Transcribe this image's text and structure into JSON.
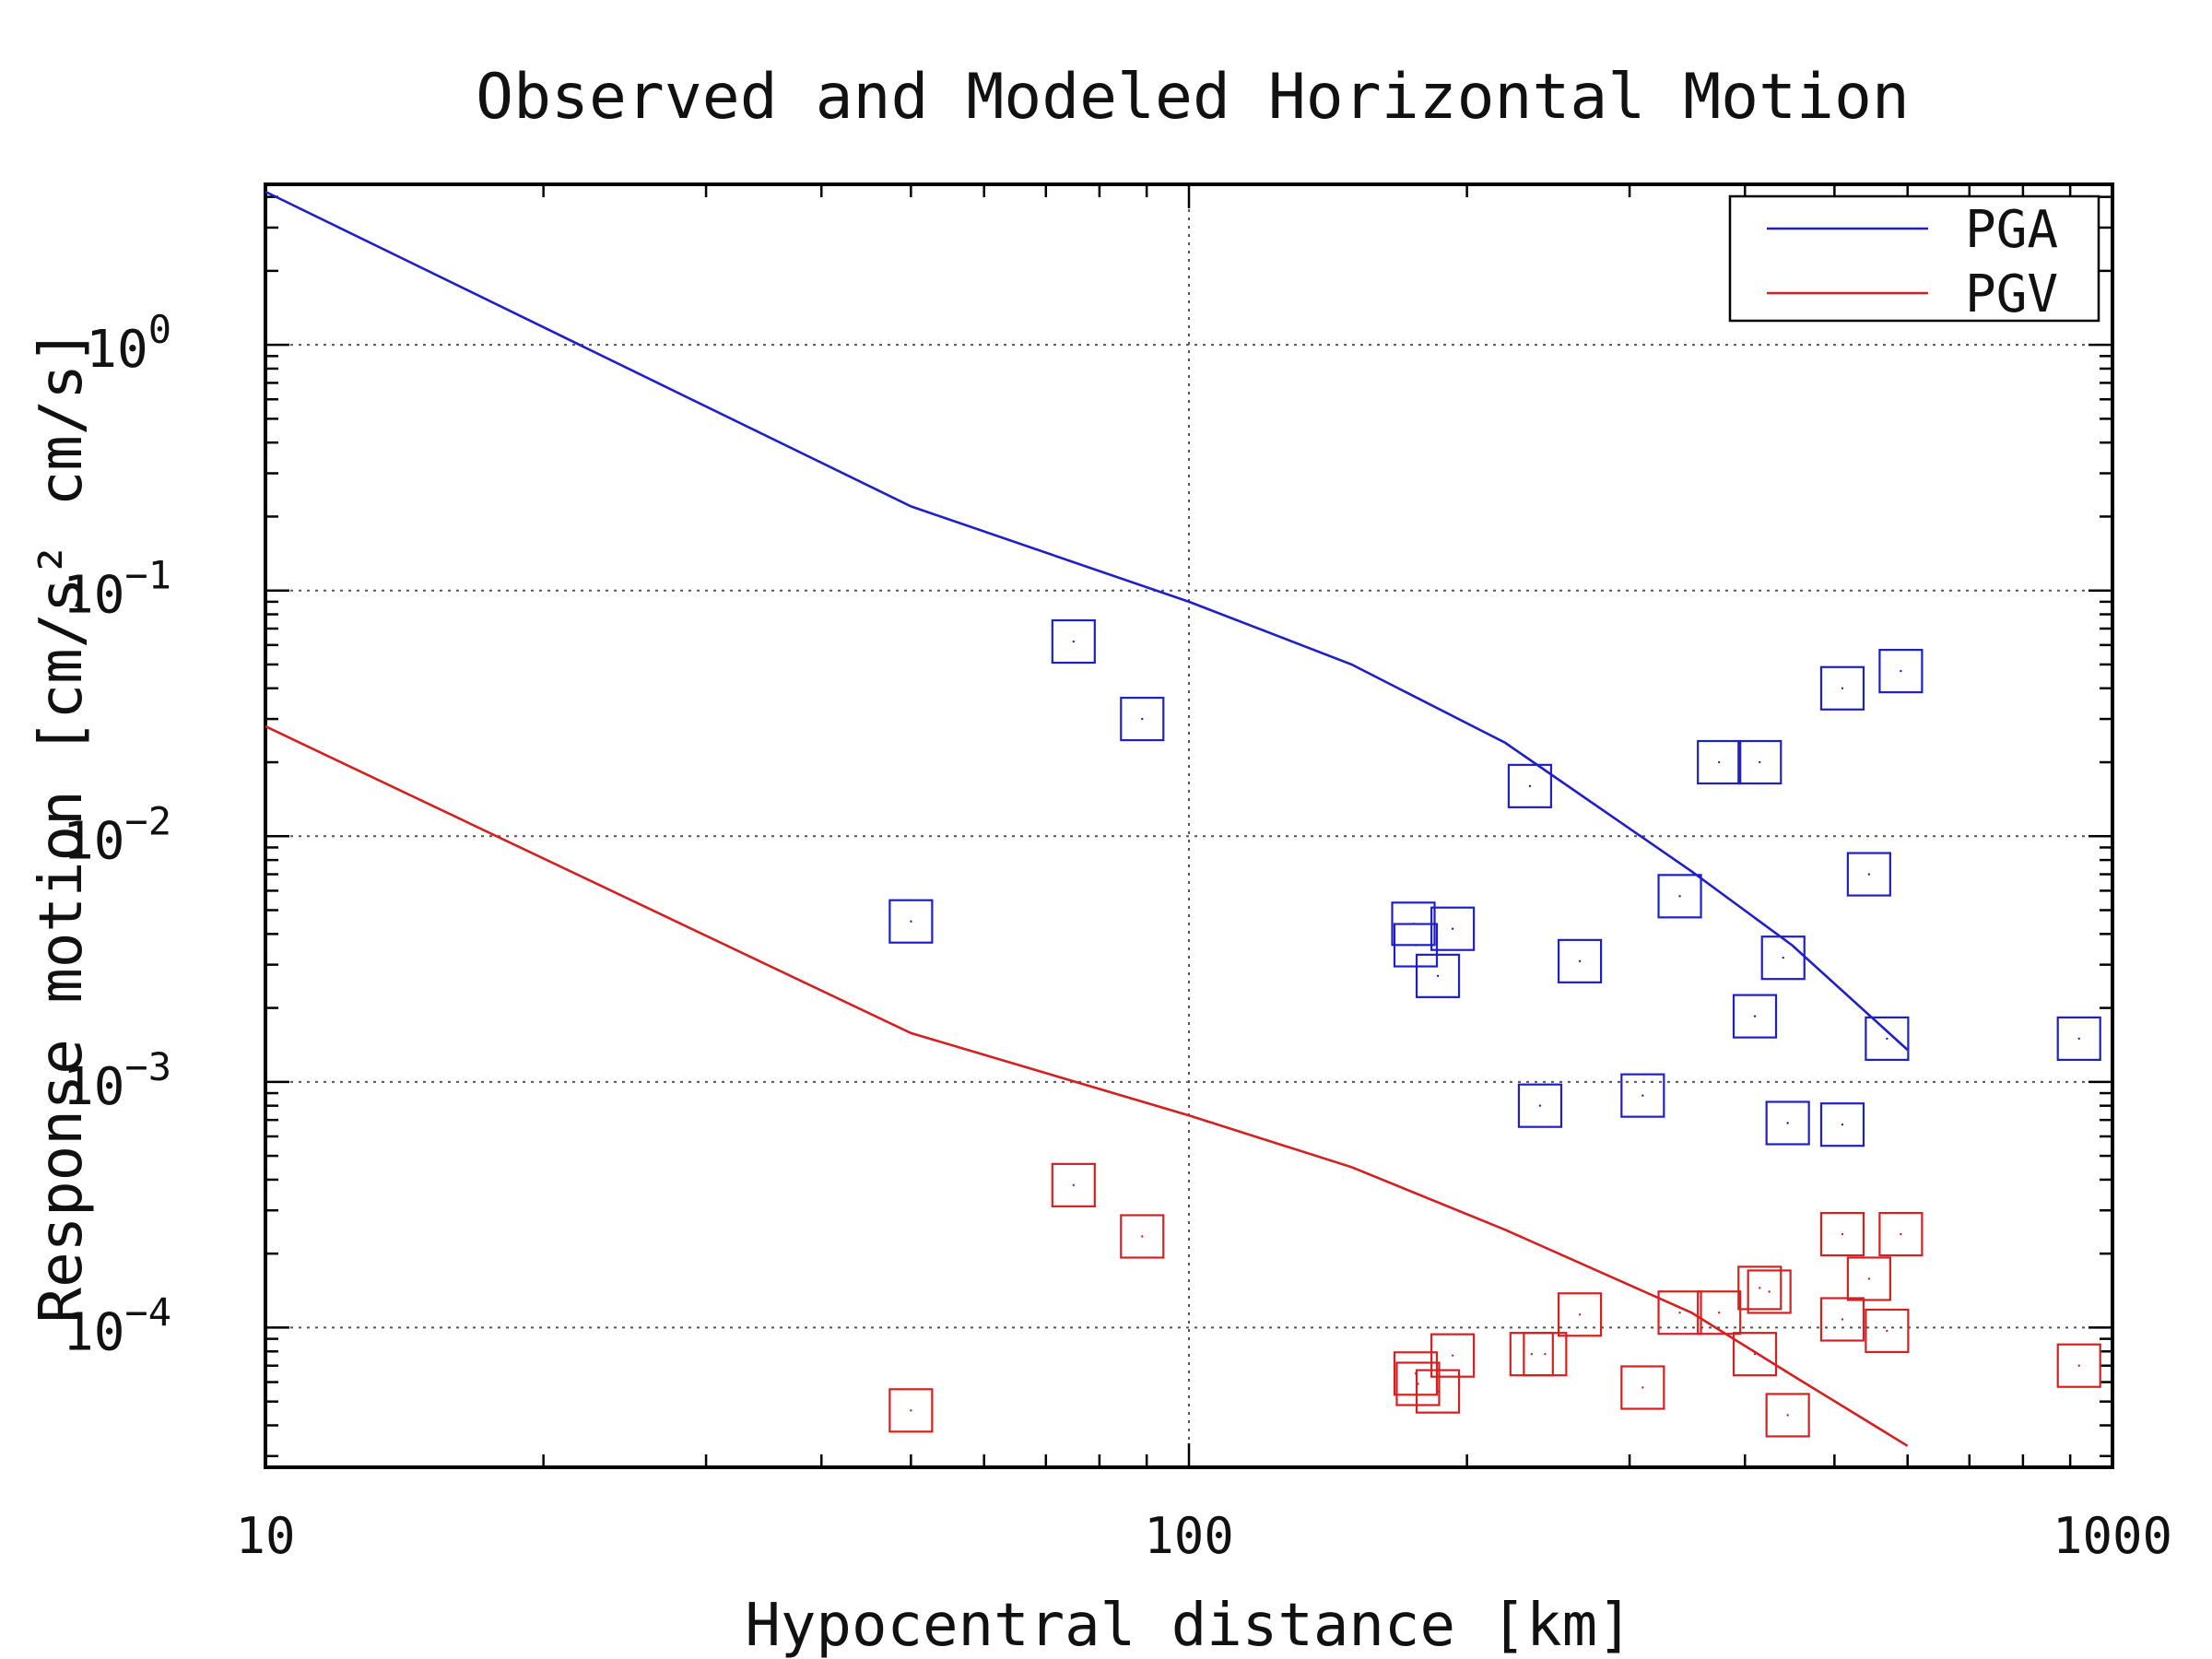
{
  "chart_data": {
    "type": "scatter",
    "title": "Observed and Modeled Horizontal Motion",
    "xlabel": "Hypocentral distance [km]",
    "ylabel": "Response motion [cm/s² cm/s]",
    "x_scale": "log",
    "y_scale": "log",
    "xlim": [
      10,
      1000
    ],
    "ylim": [
      2.7e-05,
      4.5
    ],
    "x_ticks": [
      {
        "value": 10,
        "label": "10"
      },
      {
        "value": 100,
        "label": "100"
      },
      {
        "value": 1000,
        "label": "1000"
      }
    ],
    "y_ticks": [
      {
        "value": 1,
        "base": "10",
        "exp": "0"
      },
      {
        "value": 0.1,
        "base": "10",
        "exp": "−1"
      },
      {
        "value": 0.01,
        "base": "10",
        "exp": "−2"
      },
      {
        "value": 0.001,
        "base": "10",
        "exp": "−3"
      },
      {
        "value": 0.0001,
        "base": "10",
        "exp": "−4"
      }
    ],
    "grid": true,
    "legend_position": "top-right",
    "legend": [
      {
        "label": "PGA",
        "color": "#1f1fc8"
      },
      {
        "label": "PGV",
        "color": "#d42020"
      }
    ],
    "lines": [
      {
        "name": "PGA",
        "color": "#1f1fc8",
        "x": [
          10,
          50,
          100,
          150,
          220,
          350,
          450,
          600
        ],
        "y": [
          4.2,
          0.22,
          0.09,
          0.05,
          0.024,
          0.0072,
          0.0036,
          0.00135
        ]
      },
      {
        "name": "PGV",
        "color": "#d42020",
        "x": [
          10,
          50,
          100,
          150,
          220,
          350,
          450,
          600
        ],
        "y": [
          0.028,
          0.00158,
          0.00073,
          0.00045,
          0.00025,
          0.000115,
          6.4e-05,
          3.3e-05
        ]
      }
    ],
    "scatter": [
      {
        "name": "PGA",
        "color": "#1f1fc8",
        "marker": "square",
        "x": [
          50,
          75,
          89,
          175,
          176,
          186,
          193,
          234,
          265,
          240,
          310,
          340,
          375,
          415,
          410,
          440,
          445,
          510,
          510,
          545,
          570,
          590,
          920
        ],
        "y": [
          0.0045,
          0.062,
          0.03,
          0.0044,
          0.0036,
          0.0027,
          0.0042,
          0.016,
          0.0031,
          0.0008,
          0.00088,
          0.0057,
          0.02,
          0.02,
          0.00185,
          0.0032,
          0.00068,
          0.04,
          0.00067,
          0.007,
          0.0015,
          0.047,
          0.0015
        ]
      },
      {
        "name": "PGV",
        "color": "#d42020",
        "marker": "square",
        "x": [
          50,
          75,
          89,
          176,
          177,
          186,
          193,
          235,
          243,
          265,
          310,
          340,
          375,
          410,
          415,
          425,
          445,
          510,
          510,
          545,
          570,
          590,
          920
        ],
        "y": [
          4.6e-05,
          0.00038,
          0.000235,
          6.5e-05,
          5.9e-05,
          5.5e-05,
          7.7e-05,
          7.8e-05,
          7.8e-05,
          0.000113,
          5.7e-05,
          0.000115,
          0.000115,
          7.8e-05,
          0.000145,
          0.00014,
          4.4e-05,
          0.000108,
          0.00024,
          0.000158,
          9.7e-05,
          0.00024,
          7e-05
        ]
      }
    ]
  }
}
